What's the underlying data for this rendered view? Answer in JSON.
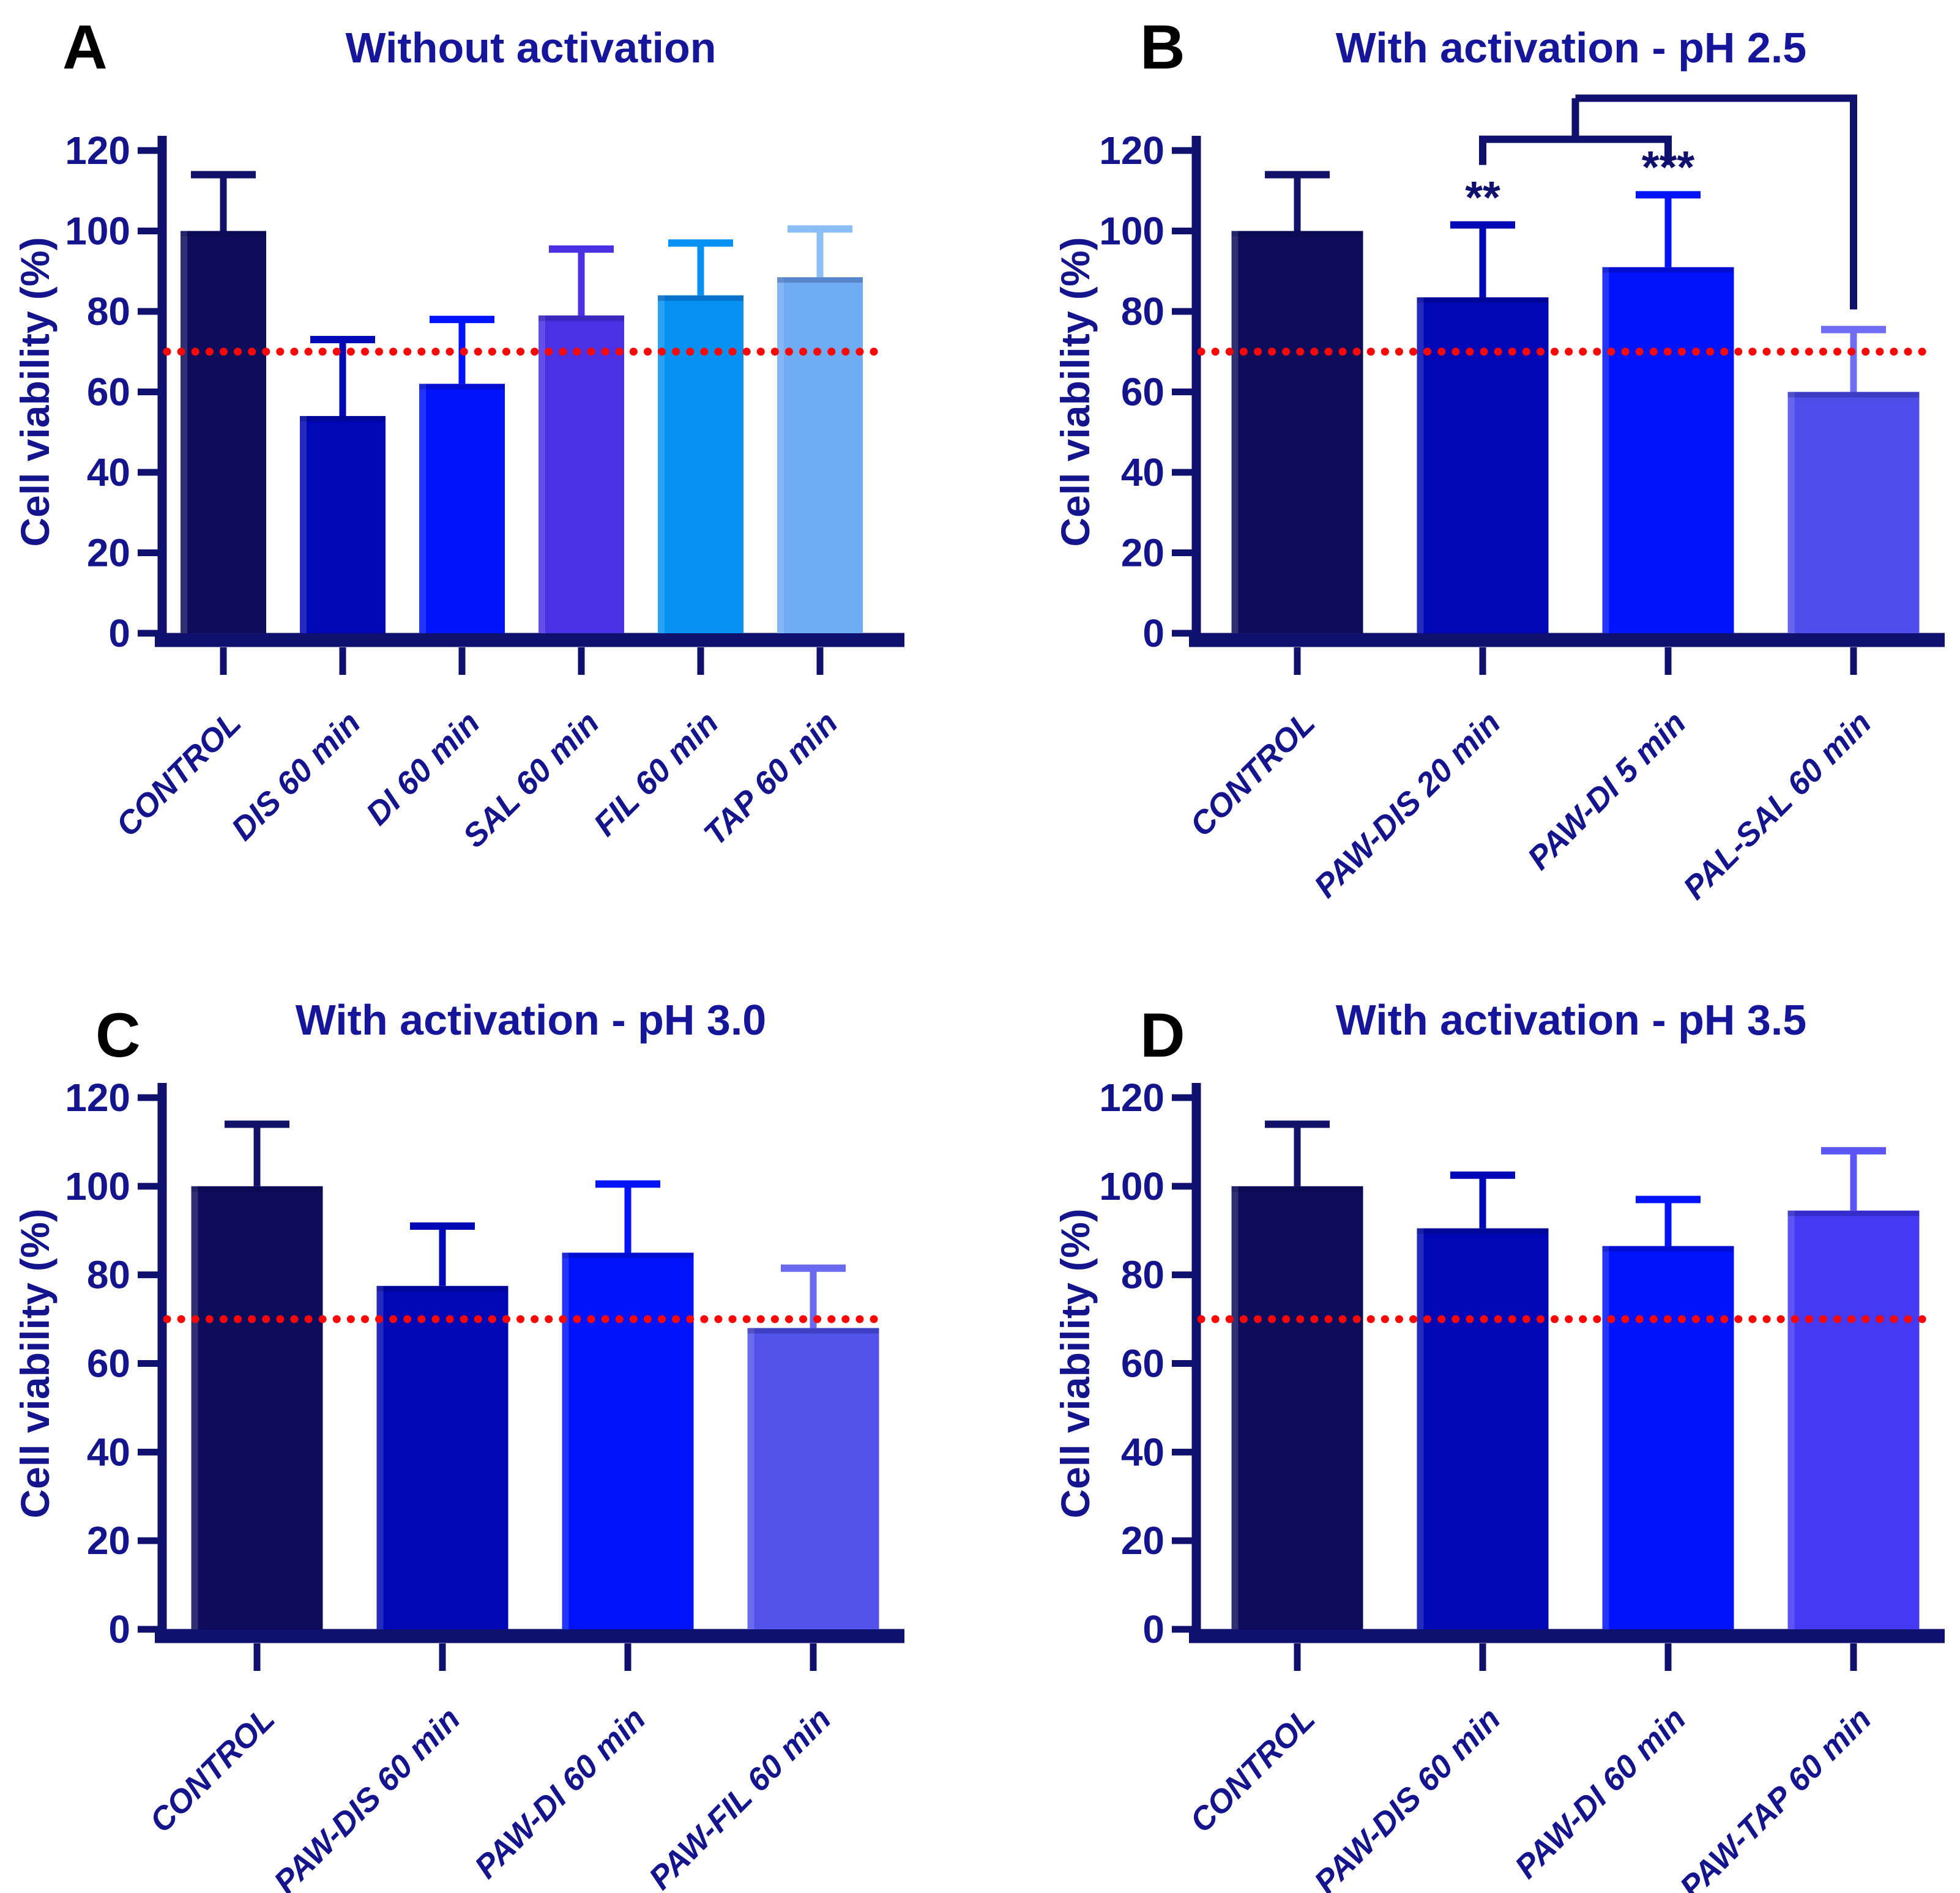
{
  "figure": {
    "ylabel": "Cell viability (%)",
    "ylim": [
      0,
      120
    ],
    "yticks": [
      0,
      20,
      40,
      60,
      80,
      100,
      120
    ],
    "threshold_value": 70,
    "colors": {
      "background": "#FFFFFF",
      "axis": "#10106E",
      "tick_text": "#14148C",
      "title_text": "#16169A",
      "panel_letter": "#000000",
      "threshold_red": "#FA0707",
      "bracket": "#10106E"
    }
  },
  "chart_data": [
    {
      "type": "bar",
      "panel_letter": "A",
      "title": "Without activation",
      "xlabel": "",
      "ylabel": "Cell viability (%)",
      "ylim": [
        0,
        120
      ],
      "yticks": [
        0,
        20,
        40,
        60,
        80,
        100,
        120
      ],
      "threshold": 70,
      "legend": "none",
      "grid": "off",
      "categories": [
        "CONTROL",
        "DIS 60 min",
        "DI 60 min",
        "SAL 60 min",
        "FIL 60 min",
        "TAP 60 min"
      ],
      "values": [
        100,
        54,
        62,
        79,
        84,
        88.5
      ],
      "errors_upper": [
        14,
        19,
        16,
        16.5,
        13,
        12
      ],
      "bar_colors": [
        "#0D0D5B",
        "#0007B4",
        "#0113FA",
        "#4C31E4",
        "#0792F3",
        "#70ACF2"
      ],
      "error_colors": [
        "#12126B",
        "#0007B4",
        "#0113FA",
        "#4C31E4",
        "#0792F3",
        "#8CBEF6"
      ]
    },
    {
      "type": "bar",
      "panel_letter": "B",
      "title": "With activation - pH 2.5",
      "xlabel": "",
      "ylabel": "Cell viability (%)",
      "ylim": [
        0,
        120
      ],
      "yticks": [
        0,
        20,
        40,
        60,
        80,
        100,
        120
      ],
      "threshold": 70,
      "legend": "none",
      "grid": "off",
      "categories": [
        "CONTROL",
        "PAW-DIS 20 min",
        "PAW-DI 5 min",
        "PAL-SAL 60 min"
      ],
      "values": [
        100,
        83.5,
        91,
        60
      ],
      "errors_upper": [
        14,
        18,
        18,
        15.5
      ],
      "bar_colors": [
        "#0D0D5B",
        "#0007B4",
        "#0113FA",
        "#4D4DEA"
      ],
      "error_colors": [
        "#12126B",
        "#0007B4",
        "#0113FA",
        "#6E6EF2"
      ],
      "significance": {
        "inner": {
          "from_bar": 1,
          "to_bar": 2,
          "y": 122.8,
          "tick_to": 116.4
        },
        "stub": {
          "from_y": 122.8,
          "to_y": 133
        },
        "outer": {
          "to_bar": 3,
          "y": 133,
          "drop_to": 80.5
        },
        "stars": [
          {
            "bar": 1,
            "text": "**",
            "y": 104.5
          },
          {
            "bar": 2,
            "text": "***",
            "y": 112
          }
        ]
      }
    },
    {
      "type": "bar",
      "panel_letter": "C",
      "title": "With activation - pH 3.0",
      "xlabel": "",
      "ylabel": "Cell viability (%)",
      "ylim": [
        0,
        120
      ],
      "yticks": [
        0,
        20,
        40,
        60,
        80,
        100,
        120
      ],
      "threshold": 70,
      "legend": "none",
      "grid": "off",
      "categories": [
        "CONTROL",
        "PAW-DIS 60 min",
        "PAW-DI 60 min",
        "PAW-FIL 60 min"
      ],
      "values": [
        100,
        77.5,
        85,
        68
      ],
      "errors_upper": [
        14,
        13.5,
        15.5,
        13.5
      ],
      "bar_colors": [
        "#0D0D5B",
        "#0007B4",
        "#0113FA",
        "#5353EB"
      ],
      "error_colors": [
        "#12126B",
        "#0007B4",
        "#0113FA",
        "#6A6AF0"
      ]
    },
    {
      "type": "bar",
      "panel_letter": "D",
      "title": "With activation - pH 3.5",
      "xlabel": "",
      "ylabel": "Cell viability (%)",
      "ylim": [
        0,
        120
      ],
      "yticks": [
        0,
        20,
        40,
        60,
        80,
        100,
        120
      ],
      "threshold": 70,
      "legend": "none",
      "grid": "off",
      "categories": [
        "CONTROL",
        "PAW-DIS 60 min",
        "PAW-DI 60 min",
        "PAW-TAP 60 min"
      ],
      "values": [
        100,
        90.5,
        86.5,
        94.5
      ],
      "errors_upper": [
        14,
        12,
        10.5,
        13.5
      ],
      "bar_colors": [
        "#0D0D5B",
        "#0007B4",
        "#0113FA",
        "#4539F1"
      ],
      "error_colors": [
        "#12126B",
        "#0007B4",
        "#0113FA",
        "#5B55F5"
      ]
    }
  ]
}
